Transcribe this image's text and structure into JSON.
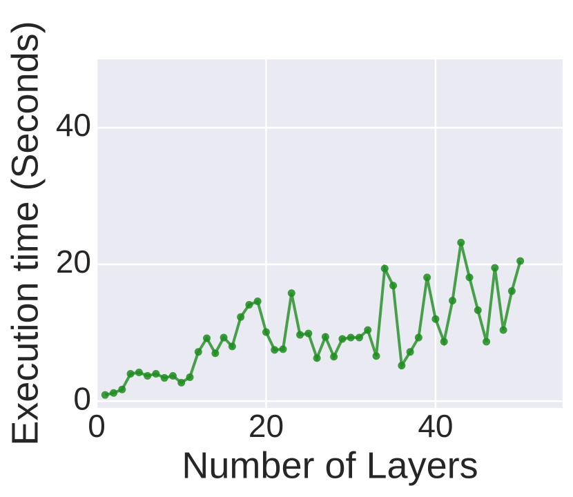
{
  "chart_data": {
    "type": "line",
    "x_label": "Number of Layers",
    "y_label": "Execution time (Seconds)",
    "x": [
      1,
      2,
      3,
      4,
      5,
      6,
      7,
      8,
      9,
      10,
      11,
      12,
      13,
      14,
      15,
      16,
      17,
      18,
      19,
      20,
      21,
      22,
      23,
      24,
      25,
      26,
      27,
      28,
      29,
      30,
      31,
      32,
      33,
      34,
      35,
      36,
      37,
      38,
      39,
      40,
      41,
      42,
      43,
      44,
      45,
      46,
      47,
      48,
      49,
      50
    ],
    "series": [
      {
        "color": "#1f8c1f",
        "values": [
          0.9,
          1.2,
          1.7,
          4.0,
          4.2,
          3.7,
          4.0,
          3.4,
          3.7,
          2.7,
          3.5,
          7.2,
          9.2,
          7.0,
          9.3,
          8.0,
          12.3,
          14.1,
          14.6,
          10.1,
          7.5,
          7.6,
          15.8,
          9.7,
          9.9,
          6.3,
          9.4,
          6.5,
          9.1,
          9.3,
          9.3,
          10.4,
          6.6,
          19.4,
          16.9,
          5.2,
          7.2,
          9.3,
          18.1,
          12.0,
          8.7,
          14.7,
          23.2,
          18.1,
          13.3,
          8.7,
          19.5,
          10.4,
          16.1,
          20.5
        ]
      }
    ],
    "xlim": [
      0,
      55
    ],
    "ylim": [
      -1,
      50
    ],
    "xticks": [
      0,
      20,
      40
    ],
    "yticks": [
      0,
      20,
      40
    ],
    "grid": true
  }
}
